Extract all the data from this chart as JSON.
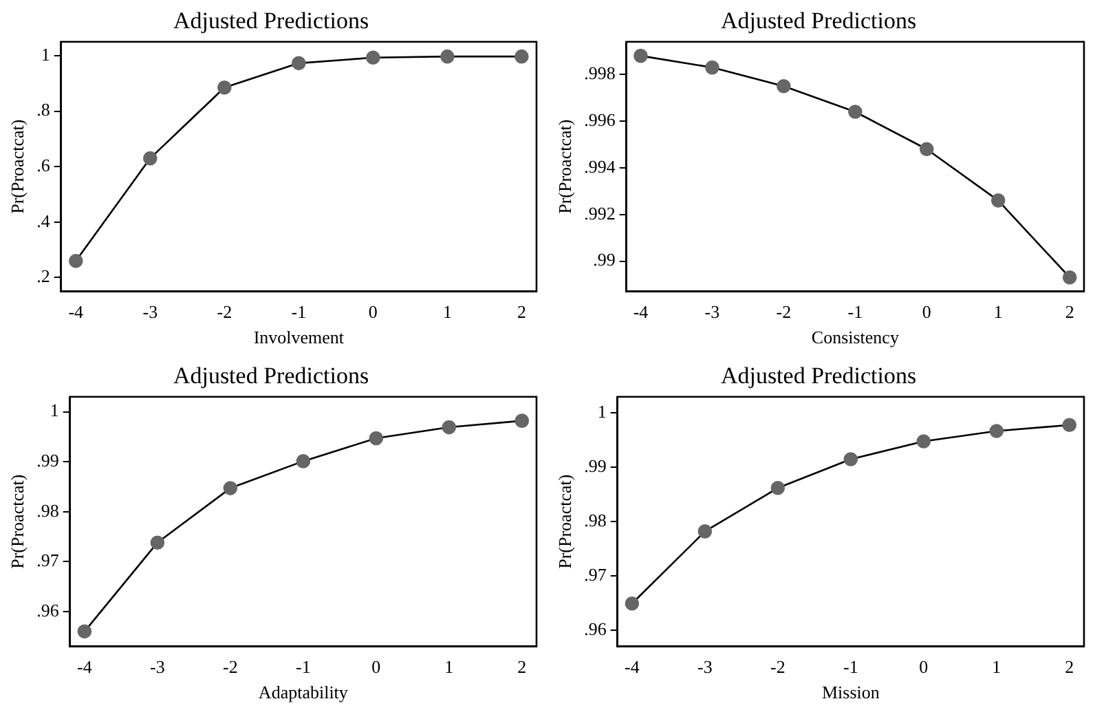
{
  "chart_data": [
    {
      "type": "line",
      "title": "Adjusted Predictions",
      "xlabel": "Involvement",
      "ylabel": "Pr(Proactcat)",
      "x": [
        -4,
        -3,
        -2,
        -1,
        0,
        1,
        2
      ],
      "series": [
        {
          "color": "#666666",
          "values": [
            0.26,
            0.63,
            0.885,
            0.973,
            0.993,
            0.997,
            0.997
          ]
        }
      ],
      "xlim": [
        -4.2,
        2.2
      ],
      "xticks": [
        -4,
        -3,
        -2,
        -1,
        0,
        1,
        2
      ],
      "ylim": [
        0.15,
        1.05
      ],
      "yticks": [
        {
          "value": 0.2,
          "label": ".2"
        },
        {
          "value": 0.4,
          "label": ".4"
        },
        {
          "value": 0.6,
          "label": ".6"
        },
        {
          "value": 0.8,
          "label": ".8"
        },
        {
          "value": 1,
          "label": "1"
        }
      ],
      "grid": false,
      "legend": false,
      "marker": "circle",
      "line_style": "solid"
    },
    {
      "type": "line",
      "title": "Adjusted Predictions",
      "xlabel": "Consistency",
      "ylabel": "Pr(Proactcat)",
      "x": [
        -4,
        -3,
        -2,
        -1,
        0,
        1,
        2
      ],
      "series": [
        {
          "color": "#666666",
          "values": [
            0.9988,
            0.9983,
            0.9975,
            0.9964,
            0.9948,
            0.9926,
            0.9893
          ]
        }
      ],
      "xlim": [
        -4.2,
        2.2
      ],
      "xticks": [
        -4,
        -3,
        -2,
        -1,
        0,
        1,
        2
      ],
      "ylim": [
        0.9887,
        0.9994
      ],
      "yticks": [
        {
          "value": 0.99,
          "label": ".99"
        },
        {
          "value": 0.992,
          "label": ".992"
        },
        {
          "value": 0.994,
          "label": ".994"
        },
        {
          "value": 0.996,
          "label": ".996"
        },
        {
          "value": 0.998,
          "label": ".998"
        }
      ],
      "grid": false,
      "legend": false,
      "marker": "circle",
      "line_style": "solid"
    },
    {
      "type": "line",
      "title": "Adjusted Predictions",
      "xlabel": "Adaptability",
      "ylabel": "Pr(Proactcat)",
      "x": [
        -4,
        -3,
        -2,
        -1,
        0,
        1,
        2
      ],
      "series": [
        {
          "color": "#666666",
          "values": [
            0.956,
            0.9738,
            0.9847,
            0.9901,
            0.9947,
            0.9969,
            0.9982
          ]
        }
      ],
      "xlim": [
        -4.2,
        2.2
      ],
      "xticks": [
        -4,
        -3,
        -2,
        -1,
        0,
        1,
        2
      ],
      "ylim": [
        0.953,
        1.003
      ],
      "yticks": [
        {
          "value": 0.96,
          "label": ".96"
        },
        {
          "value": 0.97,
          "label": ".97"
        },
        {
          "value": 0.98,
          "label": ".98"
        },
        {
          "value": 0.99,
          "label": ".99"
        },
        {
          "value": 1,
          "label": "1"
        }
      ],
      "grid": false,
      "legend": false,
      "marker": "circle",
      "line_style": "solid"
    },
    {
      "type": "line",
      "title": "Adjusted Predictions",
      "xlabel": "Mission",
      "ylabel": "Pr(Proactcat)",
      "x": [
        -4,
        -3,
        -2,
        -1,
        0,
        1,
        2
      ],
      "series": [
        {
          "color": "#666666",
          "values": [
            0.9649,
            0.9782,
            0.9862,
            0.9915,
            0.9948,
            0.9967,
            0.9978
          ]
        }
      ],
      "xlim": [
        -4.2,
        2.2
      ],
      "xticks": [
        -4,
        -3,
        -2,
        -1,
        0,
        1,
        2
      ],
      "ylim": [
        0.957,
        1.003
      ],
      "yticks": [
        {
          "value": 0.96,
          "label": ".96"
        },
        {
          "value": 0.97,
          "label": ".97"
        },
        {
          "value": 0.98,
          "label": ".98"
        },
        {
          "value": 0.99,
          "label": ".99"
        },
        {
          "value": 1,
          "label": "1"
        }
      ],
      "grid": false,
      "legend": false,
      "marker": "circle",
      "line_style": "solid"
    }
  ]
}
